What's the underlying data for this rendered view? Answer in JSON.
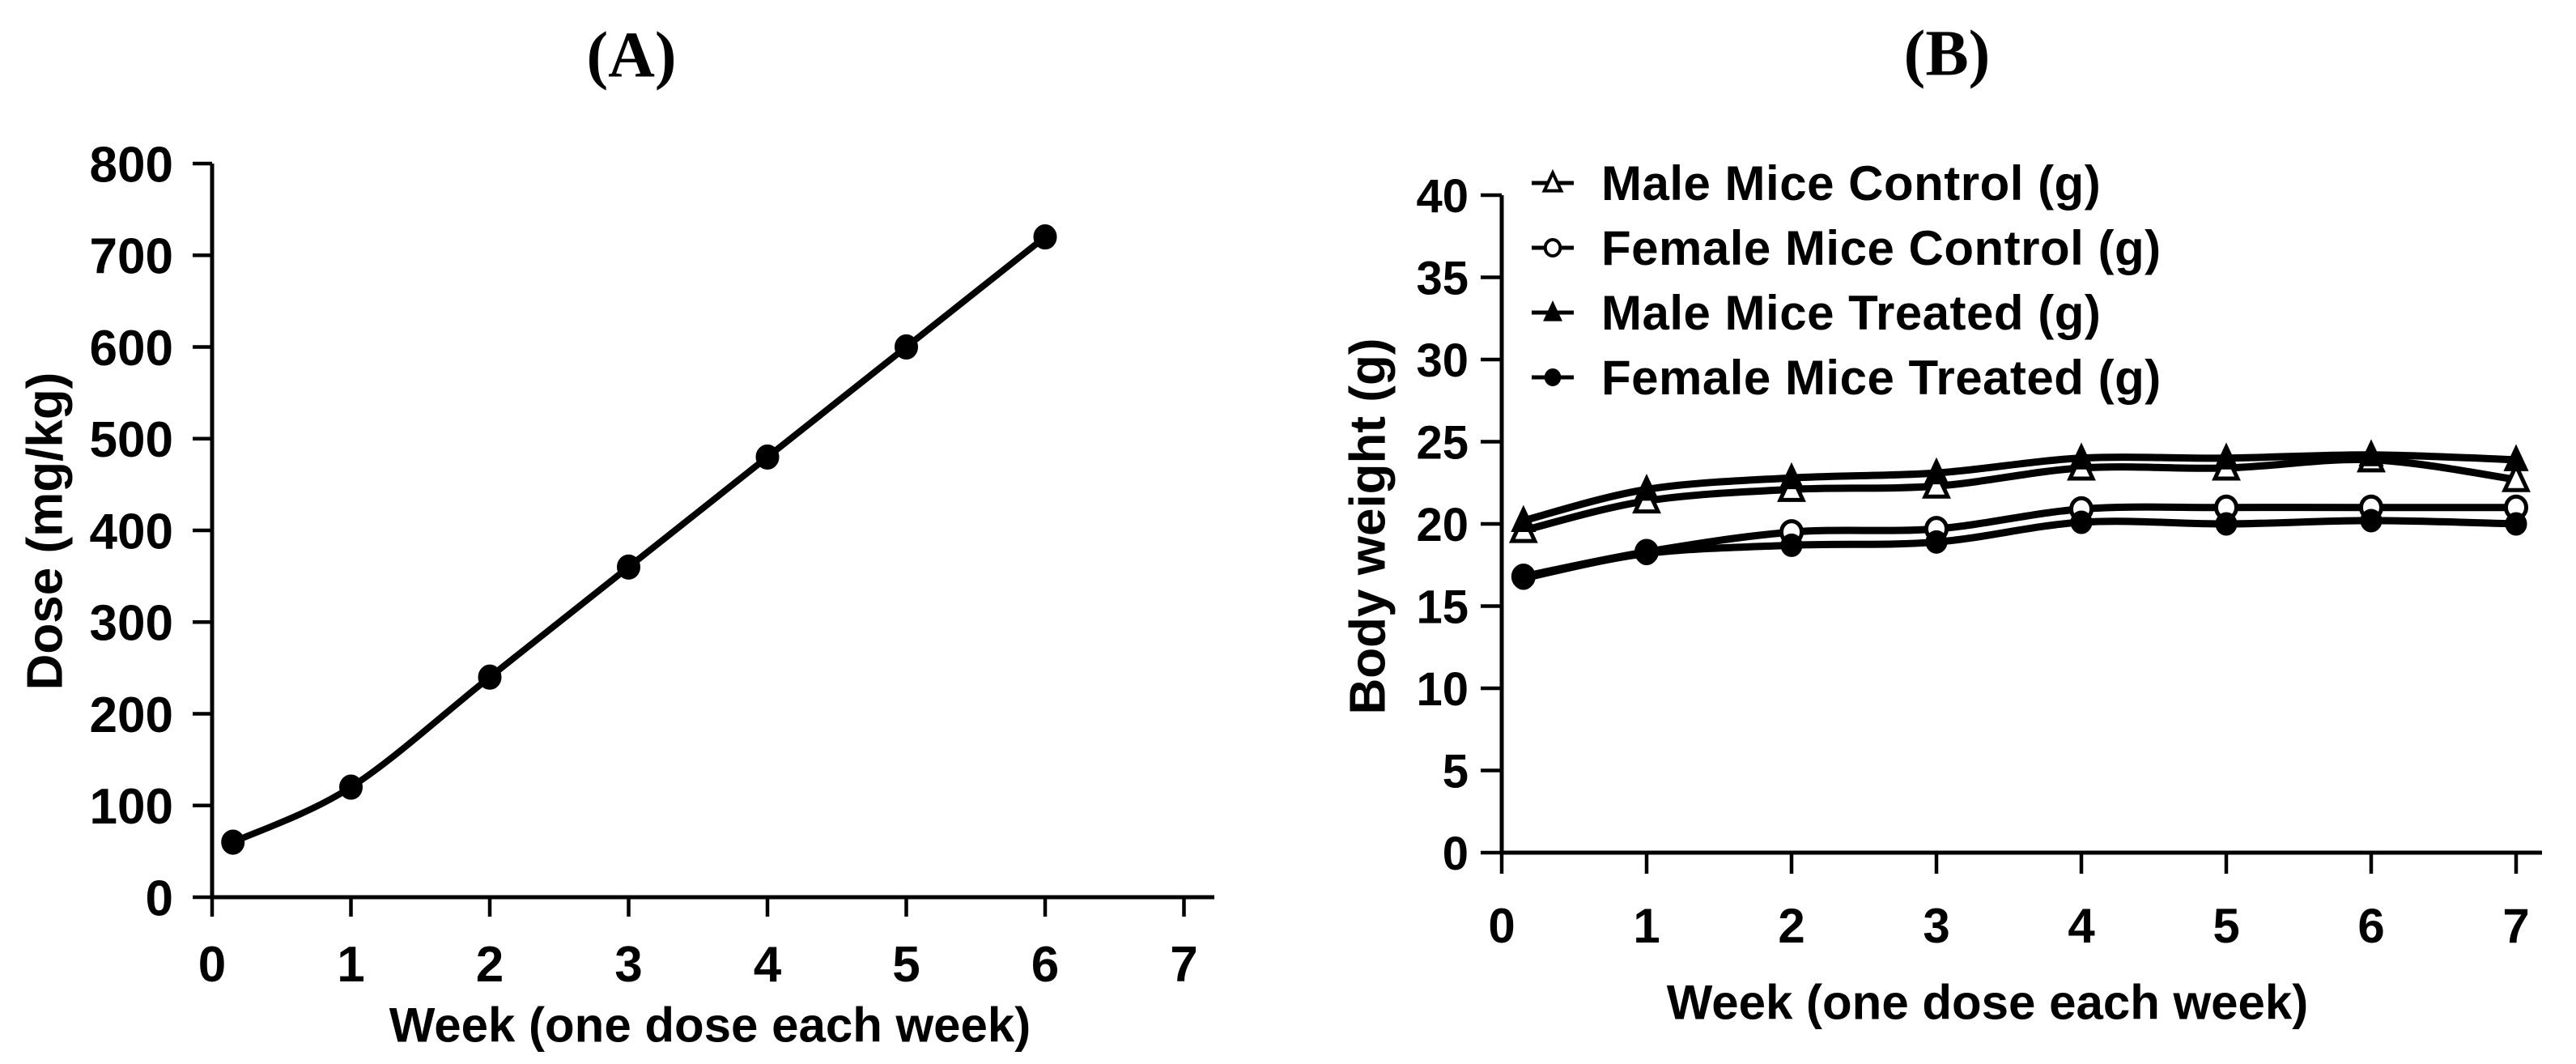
{
  "figure": {
    "background": "#ffffff",
    "ink": "#000000"
  },
  "chart_data": [
    {
      "panel": "A",
      "type": "line",
      "title": "(A)",
      "xlabel": "Week (one dose each week)",
      "ylabel": "Dose (mg/kg)",
      "xlim": [
        0,
        7.2
      ],
      "ylim": [
        0,
        800
      ],
      "x_ticks": [
        0,
        1,
        2,
        3,
        4,
        5,
        6,
        7
      ],
      "y_ticks": [
        0,
        100,
        200,
        300,
        400,
        500,
        600,
        700,
        800
      ],
      "grid": false,
      "legend_position": "none",
      "series": [
        {
          "name": "Dose (mg/kg)",
          "marker": "circle-filled",
          "x": [
            0.15,
            1,
            2,
            3,
            4,
            5,
            6
          ],
          "y": [
            60,
            120,
            240,
            360,
            480,
            600,
            720
          ]
        }
      ]
    },
    {
      "panel": "B",
      "type": "line",
      "title": "(B)",
      "xlabel": "Week (one dose each week)",
      "ylabel": "Body weight (g)",
      "xlim": [
        0,
        7.2
      ],
      "ylim": [
        0,
        40
      ],
      "x_ticks": [
        0,
        1,
        2,
        3,
        4,
        5,
        6,
        7
      ],
      "y_ticks": [
        0,
        5,
        10,
        15,
        20,
        25,
        30,
        35,
        40
      ],
      "grid": false,
      "legend_position": "top-left-inside",
      "series": [
        {
          "name": "Male Mice Control (g)",
          "marker": "triangle-open",
          "x": [
            0.15,
            1,
            2,
            3,
            4,
            5,
            6,
            7
          ],
          "y": [
            19.6,
            21.4,
            22.1,
            22.3,
            23.4,
            23.4,
            23.9,
            22.7
          ]
        },
        {
          "name": "Female Mice Control (g)",
          "marker": "circle-open",
          "x": [
            0.15,
            1,
            2,
            3,
            4,
            5,
            6,
            7
          ],
          "y": [
            16.8,
            18.3,
            19.5,
            19.7,
            20.9,
            21.0,
            21.0,
            21.0
          ]
        },
        {
          "name": "Male Mice Treated (g)",
          "marker": "triangle-filled",
          "x": [
            0.15,
            1,
            2,
            3,
            4,
            5,
            6,
            7
          ],
          "y": [
            20.2,
            22.1,
            22.8,
            23.1,
            24.0,
            24.0,
            24.2,
            23.9
          ]
        },
        {
          "name": "Female Mice Treated (g)",
          "marker": "circle-filled",
          "x": [
            0.15,
            1,
            2,
            3,
            4,
            5,
            6,
            7
          ],
          "y": [
            16.7,
            18.2,
            18.7,
            18.9,
            20.1,
            20.0,
            20.2,
            20.0
          ]
        }
      ]
    }
  ]
}
